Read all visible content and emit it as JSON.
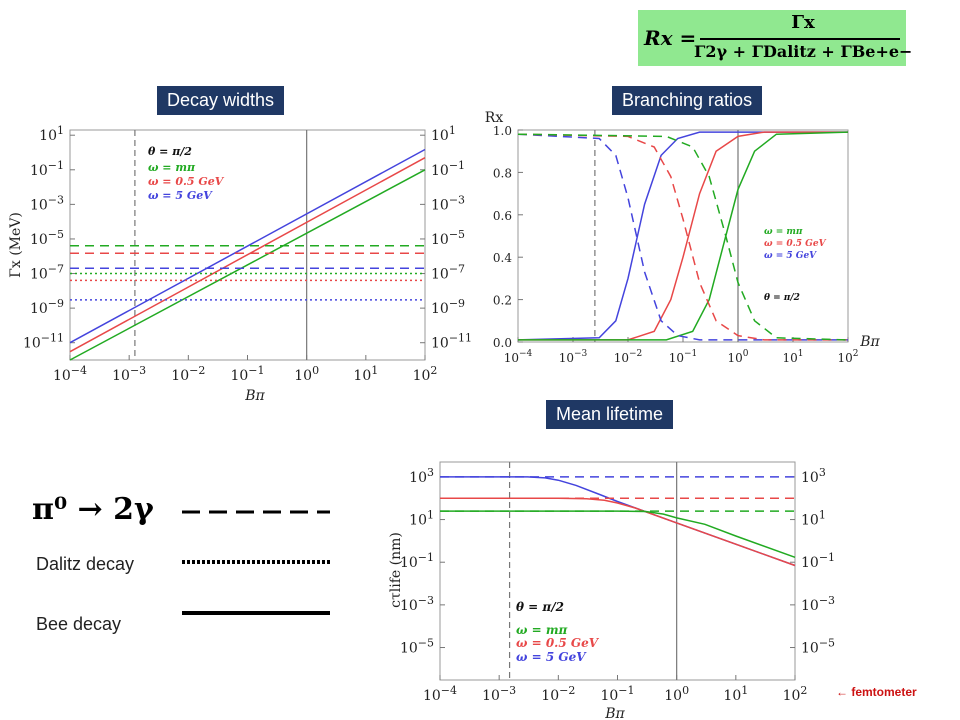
{
  "formula": {
    "lhs": "Rx =",
    "numerator": "Γx",
    "denominator": "Γ2γ + ΓDalitz + ΓBe+e−"
  },
  "titles": {
    "decay_widths": "Decay widths",
    "branching_ratios": "Branching ratios",
    "mean_lifetime": "Mean lifetime"
  },
  "legend": {
    "pi0": "π⁰ → 2γ",
    "dalitz": "Dalitz decay",
    "bee": "Bee decay"
  },
  "femtometer_note": "←  femtometer",
  "colors": {
    "green": "#22aa22",
    "red": "#e84848",
    "blue": "#4444dd"
  },
  "chart_data": [
    {
      "type": "line",
      "id": "decay_widths",
      "title": "Decay widths",
      "xlabel": "Bπ",
      "ylabel": "Γx (MeV)",
      "xscale": "log",
      "yscale": "log",
      "xlim": [
        0.0001,
        100
      ],
      "ylim": [
        1e-12,
        20
      ],
      "xticks": [
        "10^-4",
        "10^-3",
        "10^-2",
        "10^-1",
        "10^0",
        "10^1",
        "10^2"
      ],
      "yticks": [
        "10^-11",
        "10^-9",
        "10^-7",
        "10^-5",
        "10^-3",
        "10^-1",
        "10^1"
      ],
      "vlines": [
        {
          "x": 0.00125,
          "style": "dashed"
        },
        {
          "x": 1,
          "style": "solid"
        }
      ],
      "annotations": [
        "θ = π/2",
        "ω = mπ",
        "ω = 0.5 GeV",
        "ω = 5 GeV"
      ],
      "series": [
        {
          "name": "ω = mπ",
          "color": "green",
          "style": "solid",
          "x": [
            0.0001,
            100
          ],
          "y": [
            1e-12,
            0.1
          ]
        },
        {
          "name": "ω = 0.5 GeV",
          "color": "red",
          "style": "solid",
          "x": [
            0.0001,
            100
          ],
          "y": [
            3e-12,
            0.5
          ]
        },
        {
          "name": "ω = 5 GeV",
          "color": "blue",
          "style": "solid",
          "x": [
            0.0001,
            100
          ],
          "y": [
            1e-11,
            1.5
          ]
        },
        {
          "name": "ω = mπ",
          "color": "green",
          "style": "dashed",
          "x": [
            0.0001,
            100
          ],
          "y": [
            4e-06,
            4e-06
          ]
        },
        {
          "name": "ω = 0.5 GeV",
          "color": "red",
          "style": "dashed",
          "x": [
            0.0001,
            100
          ],
          "y": [
            1.5e-06,
            1.5e-06
          ]
        },
        {
          "name": "ω = 5 GeV",
          "color": "blue",
          "style": "dashed",
          "x": [
            0.0001,
            100
          ],
          "y": [
            2e-07,
            2e-07
          ]
        },
        {
          "name": "ω = mπ",
          "color": "green",
          "style": "dotted",
          "x": [
            0.0001,
            100
          ],
          "y": [
            1e-07,
            1e-07
          ]
        },
        {
          "name": "ω = 0.5 GeV",
          "color": "red",
          "style": "dotted",
          "x": [
            0.0001,
            100
          ],
          "y": [
            4e-08,
            4e-08
          ]
        },
        {
          "name": "ω = 5 GeV",
          "color": "blue",
          "style": "dotted",
          "x": [
            0.0001,
            100
          ],
          "y": [
            3e-09,
            3e-09
          ]
        }
      ]
    },
    {
      "type": "line",
      "id": "branching_ratios",
      "title": "Branching ratios",
      "xlabel": "Bπ",
      "ylabel": "Rx",
      "xscale": "log",
      "yscale": "linear",
      "xlim": [
        0.0001,
        100
      ],
      "ylim": [
        0,
        1.0
      ],
      "xticks": [
        "10^-4",
        "10^-3",
        "10^-2",
        "10^-1",
        "10^0",
        "10^1",
        "10^2"
      ],
      "yticks": [
        "0.0",
        "0.2",
        "0.4",
        "0.6",
        "0.8",
        "1.0"
      ],
      "vlines": [
        {
          "x": 0.0025,
          "style": "dashed"
        },
        {
          "x": 1,
          "style": "solid"
        }
      ],
      "annotations": [
        "ω = mπ",
        "ω = 0.5 GeV",
        "ω = 5 GeV",
        "θ = π/2"
      ],
      "series": [
        {
          "name": "ω = 5 GeV",
          "color": "blue",
          "style": "solid",
          "x": [
            0.0001,
            0.003,
            0.006,
            0.01,
            0.02,
            0.04,
            0.08,
            0.2,
            1,
            100
          ],
          "y": [
            0.01,
            0.02,
            0.1,
            0.3,
            0.65,
            0.88,
            0.96,
            0.99,
            0.99,
            0.99
          ]
        },
        {
          "name": "ω = 0.5 GeV",
          "color": "red",
          "style": "solid",
          "x": [
            0.0001,
            0.01,
            0.03,
            0.06,
            0.1,
            0.2,
            0.4,
            1,
            3,
            100
          ],
          "y": [
            0.01,
            0.01,
            0.05,
            0.2,
            0.4,
            0.7,
            0.9,
            0.97,
            0.99,
            0.99
          ]
        },
        {
          "name": "ω = mπ",
          "color": "green",
          "style": "solid",
          "x": [
            0.0001,
            0.05,
            0.15,
            0.3,
            0.6,
            1,
            2,
            5,
            100
          ],
          "y": [
            0.01,
            0.01,
            0.05,
            0.2,
            0.5,
            0.72,
            0.9,
            0.98,
            0.99
          ]
        },
        {
          "name": "ω = 5 GeV",
          "color": "blue",
          "style": "dashed",
          "x": [
            0.0001,
            0.003,
            0.006,
            0.01,
            0.02,
            0.04,
            0.08,
            0.2,
            1,
            100
          ],
          "y": [
            0.98,
            0.96,
            0.88,
            0.68,
            0.33,
            0.1,
            0.03,
            0.01,
            0.01,
            0.01
          ]
        },
        {
          "name": "ω = 0.5 GeV",
          "color": "red",
          "style": "dashed",
          "x": [
            0.0001,
            0.01,
            0.03,
            0.06,
            0.1,
            0.2,
            0.4,
            1,
            3,
            100
          ],
          "y": [
            0.98,
            0.97,
            0.92,
            0.78,
            0.58,
            0.28,
            0.1,
            0.03,
            0.01,
            0.01
          ]
        },
        {
          "name": "ω = mπ",
          "color": "green",
          "style": "dashed",
          "x": [
            0.0001,
            0.05,
            0.15,
            0.3,
            0.6,
            1,
            2,
            5,
            100
          ],
          "y": [
            0.98,
            0.97,
            0.92,
            0.78,
            0.5,
            0.28,
            0.1,
            0.02,
            0.01
          ]
        }
      ]
    },
    {
      "type": "line",
      "id": "mean_lifetime",
      "title": "Mean lifetime",
      "xlabel": "Bπ",
      "ylabel": "cτlife (nm)",
      "xscale": "log",
      "yscale": "log",
      "xlim": [
        0.0001,
        100
      ],
      "ylim": [
        3e-07,
        5000
      ],
      "xticks": [
        "10^-4",
        "10^-3",
        "10^-2",
        "10^-1",
        "10^0",
        "10^1",
        "10^2"
      ],
      "yticks": [
        "10^-5",
        "10^-3",
        "10^-1",
        "10^1",
        "10^3"
      ],
      "vlines": [
        {
          "x": 0.0015,
          "style": "dashed"
        },
        {
          "x": 1,
          "style": "solid"
        }
      ],
      "annotations": [
        "θ = π/2",
        "ω = mπ",
        "ω = 0.5 GeV",
        "ω = 5 GeV"
      ],
      "series": [
        {
          "name": "ω = 5 GeV",
          "color": "blue",
          "style": "solid",
          "x": [
            0.0001,
            0.003,
            0.006,
            0.01,
            0.02,
            0.05,
            0.1,
            1,
            10,
            100
          ],
          "y": [
            1000,
            1000,
            900,
            700,
            400,
            150,
            70,
            7,
            0.7,
            0.07
          ]
        },
        {
          "name": "ω = 0.5 GeV",
          "color": "red",
          "style": "solid",
          "x": [
            0.0001,
            0.01,
            0.03,
            0.06,
            0.1,
            0.2,
            1,
            10,
            100
          ],
          "y": [
            100,
            100,
            95,
            80,
            60,
            35,
            7,
            0.7,
            0.07
          ]
        },
        {
          "name": "ω = mπ",
          "color": "green",
          "style": "solid",
          "x": [
            0.0001,
            0.1,
            0.3,
            0.6,
            1,
            3,
            10,
            100
          ],
          "y": [
            25,
            25,
            24,
            18,
            12,
            6,
            1.7,
            0.17
          ]
        },
        {
          "name": "ω = 5 GeV",
          "color": "blue",
          "style": "dashed",
          "x": [
            0.0001,
            100
          ],
          "y": [
            1000,
            1000
          ]
        },
        {
          "name": "ω = 0.5 GeV",
          "color": "red",
          "style": "dashed",
          "x": [
            0.0001,
            100
          ],
          "y": [
            100,
            100
          ]
        },
        {
          "name": "ω = mπ",
          "color": "green",
          "style": "dashed",
          "x": [
            0.0001,
            100
          ],
          "y": [
            25,
            25
          ]
        }
      ]
    }
  ]
}
